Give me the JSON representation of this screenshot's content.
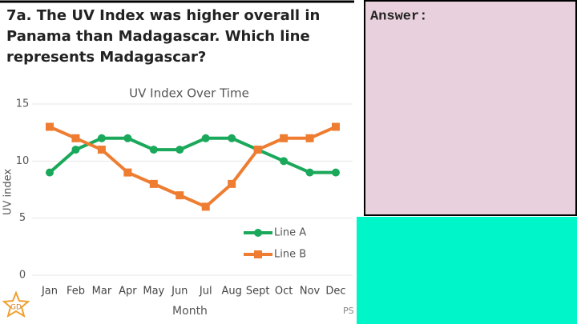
{
  "question": [
    "7a. The UV Index was higher overall in",
    "Panama than Madagascar. Which line",
    "represents Madagascar?"
  ],
  "answer_label": "Answer:",
  "badge": "GD",
  "footer_mark": "PS",
  "chart_data": {
    "type": "line",
    "title": "UV Index Over Time",
    "x_label": "Month",
    "y_label": "UV index",
    "categories": [
      "Jan",
      "Feb",
      "Mar",
      "Apr",
      "May",
      "Jun",
      "Jul",
      "Aug",
      "Sept",
      "Oct",
      "Nov",
      "Dec"
    ],
    "series": [
      {
        "name": "Line A",
        "color": "#1aa85a",
        "values": [
          9,
          11,
          12,
          12,
          11,
          11,
          12,
          12,
          11,
          10,
          9,
          9
        ]
      },
      {
        "name": "Line B",
        "color": "#ee7d31",
        "values": [
          13,
          12,
          11,
          9,
          8,
          7,
          6,
          8,
          11,
          12,
          12,
          13
        ]
      }
    ],
    "ylim": [
      0,
      15
    ],
    "yticks": [
      0,
      5,
      10,
      15
    ]
  }
}
